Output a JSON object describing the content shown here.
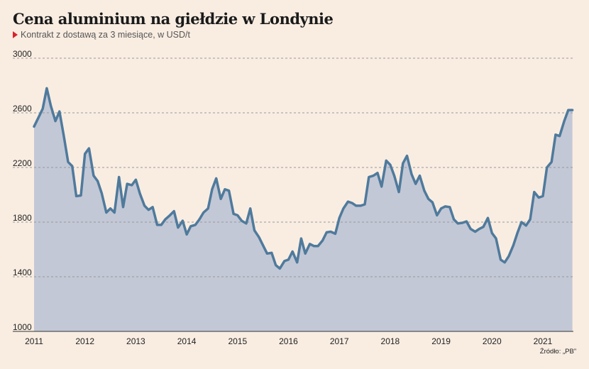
{
  "chart_data": {
    "type": "area",
    "title": "Cena aluminium na giełdzie w Londynie",
    "subtitle": "Kontrakt z dostawą za 3 miesiące, w USD/t",
    "source": "Źródło: „PB”",
    "xlabel": "",
    "ylabel": "",
    "xlim": [
      2011.0,
      2021.6
    ],
    "ylim": [
      1000,
      3000
    ],
    "y_ticks": [
      1000,
      1400,
      1800,
      2200,
      2600,
      3000
    ],
    "x_ticks": [
      "2011",
      "2012",
      "2013",
      "2014",
      "2015",
      "2016",
      "2017",
      "2018",
      "2019",
      "2020",
      "2021"
    ],
    "grid": "horizontal dashed",
    "colors": {
      "line": "#4f7a9c",
      "fill": "#c3c8d6",
      "background": "#f9ede2",
      "grid": "#999999"
    },
    "series": [
      {
        "x": [
          2011.0,
          2011.08,
          2011.17,
          2011.25,
          2011.33,
          2011.42,
          2011.5,
          2011.58,
          2011.67,
          2011.75,
          2011.83,
          2011.92,
          2012.0,
          2012.08,
          2012.17,
          2012.25,
          2012.33,
          2012.42,
          2012.5,
          2012.58,
          2012.67,
          2012.75,
          2012.83,
          2012.92,
          2013.0,
          2013.08,
          2013.17,
          2013.25,
          2013.33,
          2013.42,
          2013.5,
          2013.58,
          2013.67,
          2013.75,
          2013.83,
          2013.92,
          2014.0,
          2014.08,
          2014.17,
          2014.25,
          2014.33,
          2014.42,
          2014.5,
          2014.58,
          2014.67,
          2014.75,
          2014.83,
          2014.92,
          2015.0,
          2015.08,
          2015.17,
          2015.25,
          2015.33,
          2015.42,
          2015.5,
          2015.58,
          2015.67,
          2015.75,
          2015.83,
          2015.92,
          2016.0,
          2016.08,
          2016.17,
          2016.25,
          2016.33,
          2016.42,
          2016.5,
          2016.58,
          2016.67,
          2016.75,
          2016.83,
          2016.92,
          2017.0,
          2017.08,
          2017.17,
          2017.25,
          2017.33,
          2017.42,
          2017.5,
          2017.58,
          2017.67,
          2017.75,
          2017.83,
          2017.92,
          2018.0,
          2018.08,
          2018.17,
          2018.25,
          2018.33,
          2018.42,
          2018.5,
          2018.58,
          2018.67,
          2018.75,
          2018.83,
          2018.92,
          2019.0,
          2019.08,
          2019.17,
          2019.25,
          2019.33,
          2019.42,
          2019.5,
          2019.58,
          2019.67,
          2019.75,
          2019.83,
          2019.92,
          2020.0,
          2020.08,
          2020.17,
          2020.25,
          2020.33,
          2020.42,
          2020.5,
          2020.58,
          2020.67,
          2020.75,
          2020.83,
          2020.92,
          2021.0,
          2021.08,
          2021.17,
          2021.25,
          2021.33,
          2021.42,
          2021.5,
          2021.58
        ],
        "values": [
          2500,
          2560,
          2630,
          2780,
          2650,
          2540,
          2610,
          2440,
          2240,
          2210,
          1990,
          1995,
          2300,
          2340,
          2140,
          2100,
          2010,
          1870,
          1900,
          1870,
          2130,
          1910,
          2080,
          2070,
          2110,
          2010,
          1920,
          1890,
          1910,
          1780,
          1780,
          1820,
          1850,
          1880,
          1760,
          1810,
          1710,
          1770,
          1780,
          1820,
          1870,
          1900,
          2040,
          2120,
          1970,
          2040,
          2030,
          1860,
          1850,
          1810,
          1790,
          1900,
          1740,
          1690,
          1630,
          1570,
          1575,
          1485,
          1460,
          1515,
          1525,
          1585,
          1505,
          1680,
          1570,
          1640,
          1625,
          1625,
          1665,
          1725,
          1730,
          1715,
          1830,
          1900,
          1950,
          1940,
          1920,
          1920,
          1930,
          2130,
          2140,
          2160,
          2060,
          2250,
          2220,
          2140,
          2020,
          2230,
          2285,
          2150,
          2080,
          2140,
          2030,
          1970,
          1945,
          1850,
          1900,
          1915,
          1910,
          1820,
          1790,
          1795,
          1805,
          1750,
          1730,
          1750,
          1765,
          1830,
          1720,
          1680,
          1525,
          1505,
          1550,
          1630,
          1720,
          1800,
          1775,
          1820,
          2020,
          1980,
          1990,
          2200,
          2240,
          2440,
          2430,
          2540,
          2620,
          2620
        ]
      }
    ]
  }
}
